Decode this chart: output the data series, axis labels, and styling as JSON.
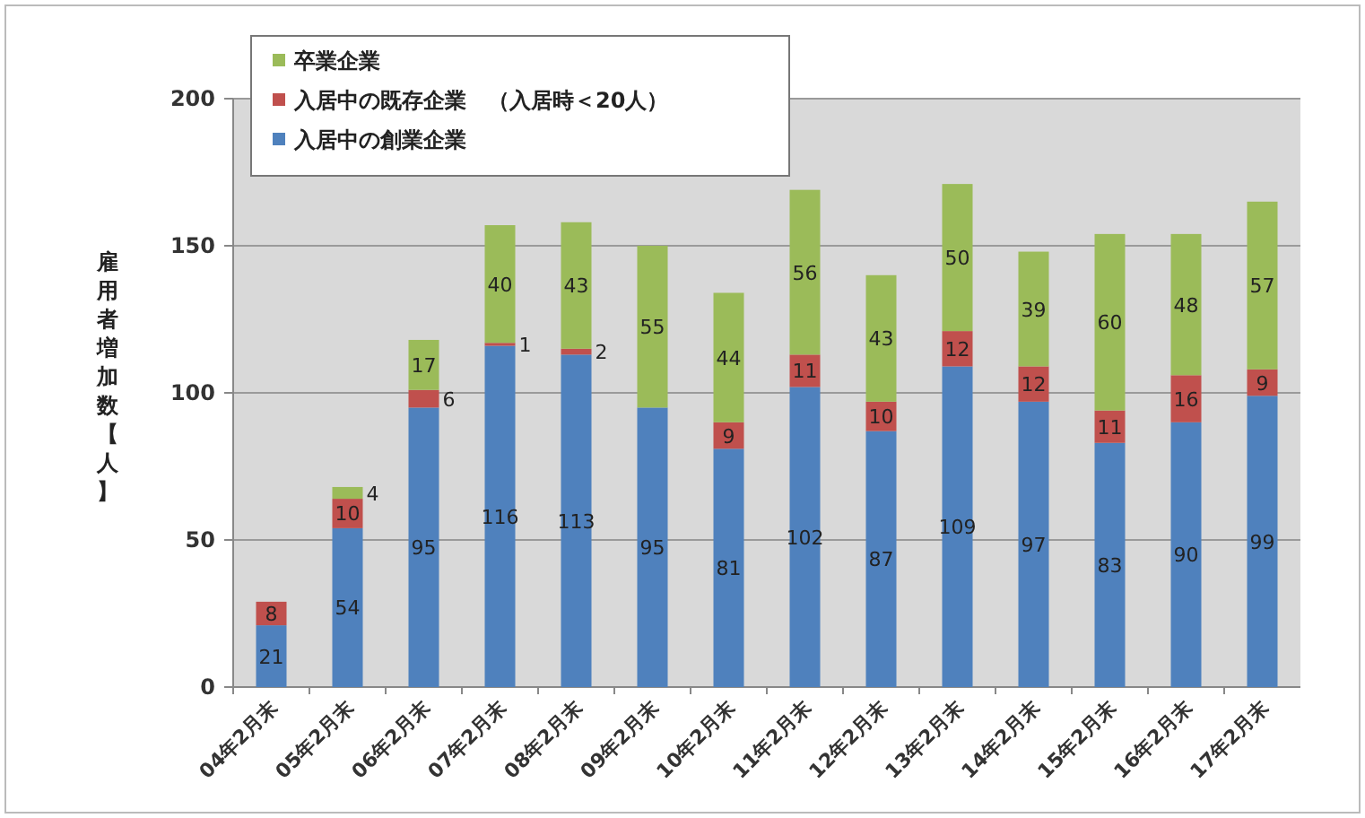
{
  "chart_data": {
    "type": "bar",
    "stacked": true,
    "ylabel": "雇用者増加数【人】",
    "categories": [
      "04年2月末",
      "05年2月末",
      "06年2月末",
      "07年2月末",
      "08年2月末",
      "09年2月末",
      "10年2月末",
      "11年2月末",
      "12年2月末",
      "13年2月末",
      "14年2月末",
      "15年2月末",
      "16年2月末",
      "17年2月末"
    ],
    "series": [
      {
        "name": "入居中の創業企業",
        "color": "#4f81bd",
        "values": [
          21,
          54,
          95,
          116,
          113,
          95,
          81,
          102,
          87,
          109,
          97,
          83,
          90,
          99
        ]
      },
      {
        "name": "入居中の既存企業　（入居時＜20人）",
        "color": "#c0504d",
        "values": [
          8,
          10,
          6,
          1,
          2,
          null,
          9,
          11,
          10,
          12,
          12,
          11,
          16,
          9
        ]
      },
      {
        "name": "卒業企業",
        "color": "#9bbb59",
        "values": [
          null,
          4,
          17,
          40,
          43,
          55,
          44,
          56,
          43,
          50,
          39,
          60,
          48,
          57
        ]
      }
    ],
    "ylim": [
      0,
      200
    ],
    "yticks": [
      0,
      50,
      100,
      150,
      200
    ],
    "grid": "y",
    "data_labels": true,
    "legend": "top left"
  }
}
